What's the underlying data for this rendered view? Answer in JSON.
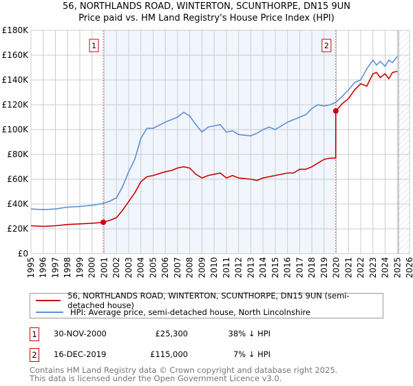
{
  "chart_data": {
    "type": "line",
    "title": "56, NORTHLANDS ROAD, WINTERTON, SCUNTHORPE, DN15 9UN",
    "subtitle": "Price paid vs. HM Land Registry's House Price Index (HPI)",
    "xlim": [
      1995,
      2026
    ],
    "ylim": [
      0,
      180000
    ],
    "x_ticks": [
      "1995",
      "1996",
      "1997",
      "1998",
      "1999",
      "2000",
      "2001",
      "2002",
      "2003",
      "2004",
      "2005",
      "2006",
      "2007",
      "2008",
      "2009",
      "2010",
      "2011",
      "2012",
      "2013",
      "2014",
      "2015",
      "2016",
      "2017",
      "2018",
      "2019",
      "2020",
      "2021",
      "2022",
      "2023",
      "2024",
      "2025",
      "2026"
    ],
    "y_ticks": [
      {
        "v": 0,
        "label": "£0"
      },
      {
        "v": 20000,
        "label": "£20K"
      },
      {
        "v": 40000,
        "label": "£40K"
      },
      {
        "v": 60000,
        "label": "£60K"
      },
      {
        "v": 80000,
        "label": "£80K"
      },
      {
        "v": 100000,
        "label": "£100K"
      },
      {
        "v": 120000,
        "label": "£120K"
      },
      {
        "v": 140000,
        "label": "£140K"
      },
      {
        "v": 160000,
        "label": "£160K"
      },
      {
        "v": 180000,
        "label": "£180K"
      }
    ],
    "grid": true,
    "series": [
      {
        "name": "56, NORTHLANDS ROAD, WINTERTON, SCUNTHORPE, DN15 9UN (semi-detached house)",
        "color": "#cc0000",
        "x": [
          1995,
          1996,
          1997,
          1998,
          1999,
          2000,
          2000.92,
          2001.5,
          2002,
          2002.5,
          2003,
          2003.5,
          2004,
          2004.5,
          2005,
          2006,
          2006.5,
          2007,
          2007.5,
          2008,
          2008.5,
          2009,
          2009.5,
          2010,
          2010.5,
          2011,
          2011.5,
          2012,
          2013,
          2013.5,
          2014,
          2014.5,
          2015,
          2016,
          2016.5,
          2017,
          2017.5,
          2018,
          2018.5,
          2019,
          2019.5,
          2019.95,
          2019.96,
          2020.5,
          2021,
          2021.5,
          2022,
          2022.5,
          2023,
          2023.3,
          2023.6,
          2024,
          2024.3,
          2024.6,
          2025
        ],
        "y": [
          22500,
          22000,
          22500,
          23500,
          24000,
          24500,
          25300,
          27000,
          29000,
          35000,
          42000,
          49000,
          58000,
          62000,
          63000,
          66000,
          67000,
          69000,
          70000,
          69000,
          64000,
          61000,
          63000,
          64000,
          65000,
          61000,
          63000,
          61000,
          60000,
          59000,
          61000,
          62000,
          63000,
          65000,
          65000,
          68000,
          68000,
          70000,
          73000,
          76000,
          77000,
          77000,
          115000,
          121000,
          125000,
          132000,
          137000,
          135000,
          145000,
          146000,
          142000,
          145000,
          141000,
          146000,
          147000
        ]
      },
      {
        "name": "HPI: Average price, semi-detached house, North Lincolnshire",
        "color": "#5b8fd4",
        "x": [
          1995,
          1996,
          1997,
          1998,
          1999,
          2000,
          2000.92,
          2001.5,
          2002,
          2002.5,
          2003,
          2003.5,
          2004,
          2004.5,
          2005,
          2006,
          2006.5,
          2007,
          2007.5,
          2008,
          2008.5,
          2009,
          2009.5,
          2010,
          2010.5,
          2011,
          2011.5,
          2012,
          2013,
          2013.5,
          2014,
          2014.5,
          2015,
          2016,
          2016.5,
          2017,
          2017.5,
          2018,
          2018.5,
          2019,
          2019.5,
          2019.96,
          2020.5,
          2021,
          2021.5,
          2022,
          2022.5,
          2023,
          2023.3,
          2023.6,
          2024,
          2024.3,
          2024.6,
          2025
        ],
        "y": [
          36000,
          35500,
          36000,
          37500,
          38000,
          39000,
          40500,
          42500,
          45000,
          54000,
          66000,
          76000,
          93000,
          101000,
          101000,
          106000,
          108000,
          110000,
          114000,
          111000,
          104000,
          98000,
          102000,
          103000,
          104000,
          98000,
          99000,
          96000,
          95000,
          97000,
          100000,
          102000,
          100000,
          106000,
          108000,
          110000,
          112000,
          117000,
          120000,
          119000,
          120000,
          122000,
          127000,
          132000,
          138000,
          140000,
          149000,
          156000,
          152000,
          155000,
          151000,
          156000,
          154000,
          159000
        ]
      }
    ],
    "annotations": [
      {
        "label": "1",
        "x": 2000.92,
        "y": 25300
      },
      {
        "label": "2",
        "x": 2019.96,
        "y": 115000
      }
    ],
    "shaded_range": [
      2000.92,
      2019.96
    ],
    "forecast_hatch_from": 2025.1
  },
  "table": [
    {
      "num": "1",
      "date": "30-NOV-2000",
      "price": "£25,300",
      "hpi": "38% ↓ HPI"
    },
    {
      "num": "2",
      "date": "16-DEC-2019",
      "price": "£115,000",
      "hpi": "7% ↓ HPI"
    }
  ],
  "footer": {
    "line1": "Contains HM Land Registry data © Crown copyright and database right 2025.",
    "line2": "This data is licensed under the Open Government Licence v3.0."
  }
}
